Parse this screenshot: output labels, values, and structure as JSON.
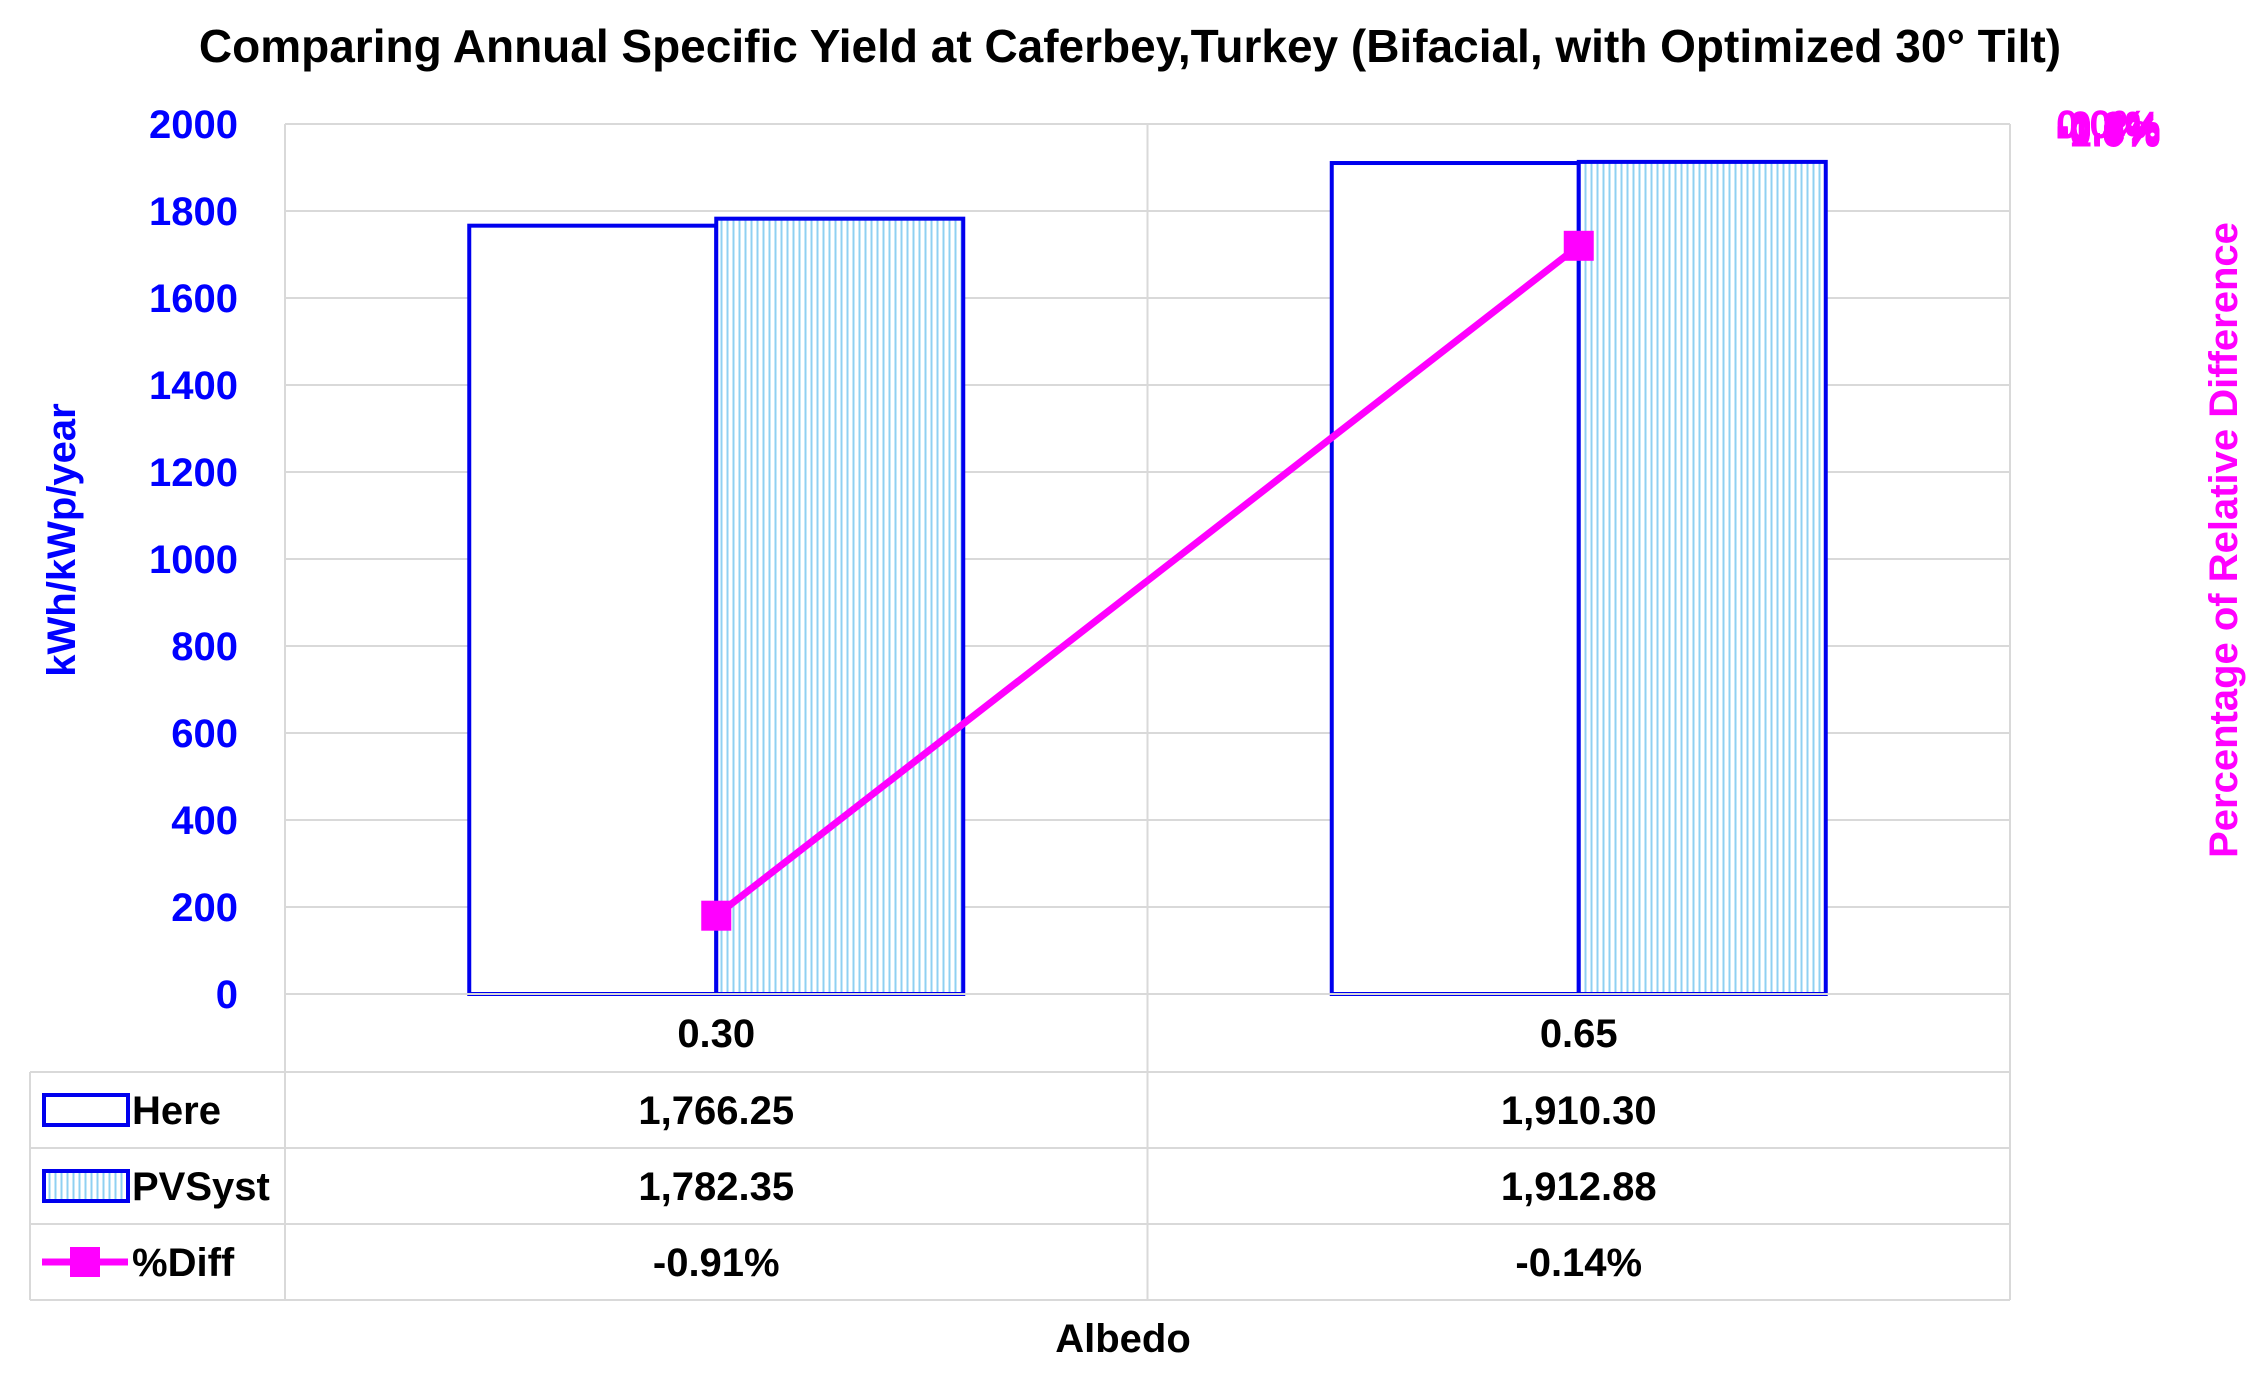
{
  "chart_data": {
    "type": "bar",
    "title": "Comparing Annual Specific Yield at Caferbey,Turkey (Bifacial, with Optimized 30° Tilt)",
    "xlabel": "Albedo",
    "ylabel": "kWh/kWp/year",
    "y2label": "Percentage of Relative Difference",
    "categories": [
      "0.30",
      "0.65"
    ],
    "ylim": [
      0,
      2000
    ],
    "y2lim": [
      -1.0,
      0.0
    ],
    "yticks": [
      "0",
      "200",
      "400",
      "600",
      "800",
      "1000",
      "1200",
      "1400",
      "1600",
      "1800",
      "2000"
    ],
    "y2ticks": [
      "-1.0%",
      "-0.9%",
      "-0.8%",
      "-0.7%",
      "-0.6%",
      "-0.5%",
      "-0.4%",
      "-0.3%",
      "-0.2%",
      "-0.1%",
      "0.0%"
    ],
    "grid": true,
    "series": [
      {
        "name": "Here",
        "kind": "bar",
        "axis": "left",
        "values": [
          1766.25,
          1910.3
        ],
        "labels": [
          "1,766.25",
          "1,910.30"
        ],
        "color": "#0000ee",
        "fill": "#ffffff",
        "pattern": "none"
      },
      {
        "name": "PVSyst",
        "kind": "bar",
        "axis": "left",
        "values": [
          1782.35,
          1912.88
        ],
        "labels": [
          "1,782.35",
          "1,912.88"
        ],
        "color": "#0000ee",
        "fill": "#9fd8f5",
        "pattern": "vertical-lines"
      },
      {
        "name": "%Diff",
        "kind": "line",
        "axis": "right",
        "values": [
          -0.91,
          -0.14
        ],
        "labels": [
          "-0.91%",
          "-0.14%"
        ],
        "color": "#ff00ff",
        "marker": "square"
      }
    ],
    "data_table": true
  }
}
